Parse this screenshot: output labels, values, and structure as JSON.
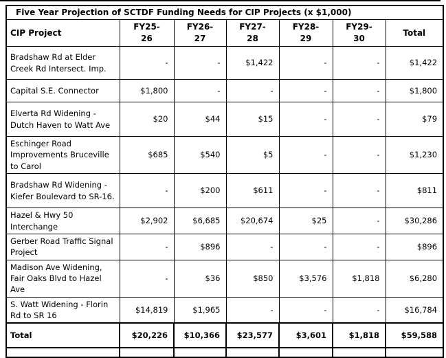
{
  "title": "Five Year Projection of SCTDF Funding Needs for CIP Projects (x $1,000)",
  "colors": {
    "border": "#000000",
    "text": "#000000",
    "background": "#ffffff"
  },
  "table": {
    "columns": [
      "CIP Project",
      "FY25-\n26",
      "FY26-\n27",
      "FY27-\n28",
      "FY28-\n29",
      "FY29-\n30",
      "Total"
    ],
    "rows": [
      {
        "project": "Bradshaw Rd at Elder Creek Rd Intersect. Imp.",
        "values": [
          "-",
          "-",
          "$1,422",
          "-",
          "-",
          "$1,422"
        ]
      },
      {
        "project": "Capital S.E. Connector",
        "values": [
          "$1,800",
          "-",
          "-",
          "-",
          "-",
          "$1,800"
        ]
      },
      {
        "project": "Elverta Rd Widening - Dutch Haven to Watt Ave",
        "values": [
          "$20",
          "$44",
          "$15",
          "-",
          "-",
          "$79"
        ]
      },
      {
        "project": "Eschinger Road Improvements Bruceville to Carol",
        "values": [
          "$685",
          "$540",
          "$5",
          "-",
          "-",
          "$1,230"
        ]
      },
      {
        "project": "Bradshaw Rd Widening - Kiefer Boulevard to SR-16.",
        "values": [
          "-",
          "$200",
          "$611",
          "-",
          "-",
          "$811"
        ]
      },
      {
        "project": "Hazel & Hwy 50 Interchange",
        "values": [
          "$2,902",
          "$6,685",
          "$20,674",
          "$25",
          "-",
          "$30,286"
        ]
      },
      {
        "project": "Gerber Road Traffic Signal Project",
        "values": [
          "-",
          "$896",
          "-",
          "-",
          "-",
          "$896"
        ]
      },
      {
        "project": "Madison Ave Widening, Fair Oaks Blvd to Hazel Ave",
        "values": [
          "-",
          "$36",
          "$850",
          "$3,576",
          "$1,818",
          "$6,280"
        ]
      },
      {
        "project": "S. Watt Widening - Florin Rd to SR 16",
        "values": [
          "$14,819",
          "$1,965",
          "-",
          "-",
          "-",
          "$16,784"
        ]
      }
    ],
    "total_row": {
      "label": "Total",
      "values": [
        "$20,226",
        "$10,366",
        "$23,577",
        "$3,601",
        "$1,818",
        "$59,588"
      ]
    },
    "blank_row": {
      "label": "",
      "values": [
        "",
        "",
        "",
        "",
        "",
        ""
      ]
    }
  }
}
